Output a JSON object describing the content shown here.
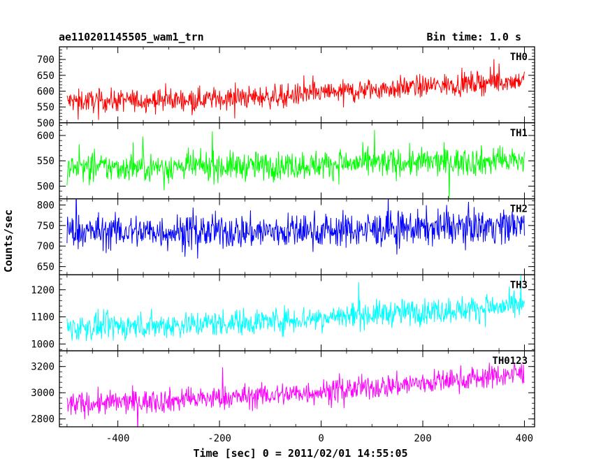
{
  "header": {
    "left_title": "ae110201145505_wam1_trn",
    "right_title": "Bin time: 1.0 s"
  },
  "chart_data": {
    "type": "line",
    "xlabel": "Time [sec] 0 = 2011/02/01 14:55:05",
    "ylabel": "Counts/sec",
    "xlim": [
      -515,
      420
    ],
    "x_ticks": [
      -400,
      -200,
      0,
      200,
      400
    ],
    "x_range": [
      -500,
      400
    ],
    "bin_time_s": 1.0,
    "panels": [
      {
        "name": "TH0",
        "color": "#ff0000",
        "ylim": [
          500,
          740
        ],
        "yticks": [
          500,
          550,
          600,
          650,
          700
        ],
        "trend": [
          [
            -500,
            568
          ],
          [
            -300,
            572
          ],
          [
            -100,
            582
          ],
          [
            100,
            605
          ],
          [
            300,
            625
          ],
          [
            400,
            635
          ]
        ],
        "noise": 25
      },
      {
        "name": "TH1",
        "color": "#00ff00",
        "ylim": [
          475,
          625
        ],
        "yticks": [
          500,
          550,
          600
        ],
        "trend": [
          [
            -500,
            536
          ],
          [
            -100,
            540
          ],
          [
            100,
            545
          ],
          [
            400,
            550
          ]
        ],
        "noise": 20
      },
      {
        "name": "TH2",
        "color": "#0000ff",
        "ylim": [
          630,
          815
        ],
        "yticks": [
          650,
          700,
          750,
          800
        ],
        "trend": [
          [
            -500,
            735
          ],
          [
            -100,
            735
          ],
          [
            100,
            740
          ],
          [
            400,
            752
          ]
        ],
        "noise": 30
      },
      {
        "name": "TH3",
        "color": "#00ffff",
        "ylim": [
          975,
          1255
        ],
        "yticks": [
          1000,
          1100,
          1200
        ],
        "trend": [
          [
            -500,
            1060
          ],
          [
            -300,
            1070
          ],
          [
            -100,
            1085
          ],
          [
            100,
            1110
          ],
          [
            300,
            1130
          ],
          [
            400,
            1140
          ]
        ],
        "noise": 35
      },
      {
        "name": "TH0123",
        "color": "#ff00ff",
        "ylim": [
          2740,
          3320
        ],
        "yticks": [
          2800,
          3000,
          3200
        ],
        "trend": [
          [
            -500,
            2910
          ],
          [
            -300,
            2940
          ],
          [
            -100,
            2980
          ],
          [
            100,
            3040
          ],
          [
            300,
            3110
          ],
          [
            400,
            3150
          ]
        ],
        "noise": 65
      }
    ]
  }
}
